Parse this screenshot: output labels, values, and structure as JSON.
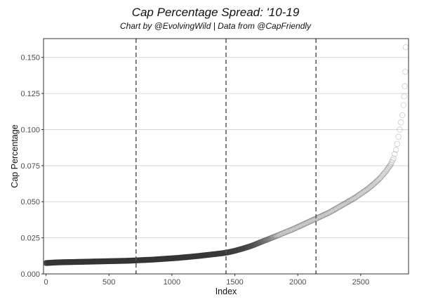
{
  "chart_data": {
    "type": "scatter",
    "title": "Cap Percentage Spread: '10-19",
    "subtitle": "Chart by @EvolvingWild | Data from @CapFriendly",
    "xlabel": "Index",
    "ylabel": "Cap Percentage",
    "xlim": [
      -20,
      2880
    ],
    "ylim": [
      0,
      0.163
    ],
    "grid": "horizontal",
    "x_ticks": [
      0,
      500,
      1000,
      1500,
      2000,
      2500
    ],
    "x_tick_labels": [
      "0",
      "500",
      "1000",
      "1500",
      "2000",
      "2500"
    ],
    "y_ticks": [
      0,
      0.025,
      0.05,
      0.075,
      0.1,
      0.125,
      0.15
    ],
    "y_tick_labels": [
      "0.000",
      "0.025",
      "0.050",
      "0.075",
      "0.100",
      "0.125",
      "0.150"
    ],
    "vlines": [
      715,
      1430,
      2145
    ],
    "series": [
      {
        "name": "Cap Percentage",
        "x": [
          0,
          50,
          100,
          150,
          200,
          250,
          300,
          350,
          400,
          450,
          500,
          550,
          600,
          650,
          700,
          750,
          800,
          850,
          900,
          950,
          1000,
          1050,
          1100,
          1150,
          1200,
          1250,
          1300,
          1350,
          1400,
          1450,
          1500,
          1550,
          1600,
          1650,
          1700,
          1750,
          1800,
          1850,
          1900,
          1950,
          2000,
          2050,
          2100,
          2150,
          2200,
          2250,
          2300,
          2350,
          2400,
          2450,
          2500,
          2550,
          2600,
          2650,
          2700,
          2720,
          2740,
          2760,
          2770,
          2780,
          2790,
          2800,
          2810,
          2820,
          2830,
          2840,
          2845,
          2850,
          2855,
          2858
        ],
        "values": [
          0.0075,
          0.0078,
          0.008,
          0.0081,
          0.0082,
          0.0083,
          0.0084,
          0.0085,
          0.0086,
          0.0087,
          0.0088,
          0.0089,
          0.009,
          0.0091,
          0.0093,
          0.0095,
          0.0097,
          0.0099,
          0.0102,
          0.0105,
          0.0108,
          0.0111,
          0.0115,
          0.0119,
          0.0123,
          0.0128,
          0.0133,
          0.0138,
          0.0143,
          0.015,
          0.016,
          0.0172,
          0.0185,
          0.02,
          0.0218,
          0.0235,
          0.0252,
          0.027,
          0.0288,
          0.0305,
          0.0325,
          0.0345,
          0.0365,
          0.0385,
          0.0405,
          0.0425,
          0.045,
          0.0475,
          0.05,
          0.0525,
          0.0555,
          0.0585,
          0.062,
          0.066,
          0.071,
          0.0735,
          0.076,
          0.08,
          0.083,
          0.086,
          0.09,
          0.095,
          0.1,
          0.105,
          0.11,
          0.117,
          0.123,
          0.13,
          0.14,
          0.157
        ]
      }
    ]
  }
}
